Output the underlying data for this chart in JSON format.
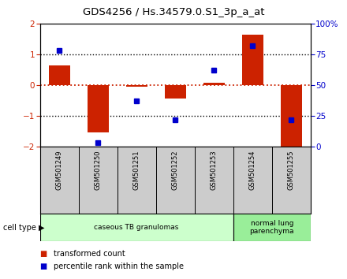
{
  "title": "GDS4256 / Hs.34579.0.S1_3p_a_at",
  "samples": [
    "GSM501249",
    "GSM501250",
    "GSM501251",
    "GSM501252",
    "GSM501253",
    "GSM501254",
    "GSM501255"
  ],
  "transformed_count": [
    0.65,
    -1.55,
    -0.05,
    -0.45,
    0.07,
    1.65,
    -2.1
  ],
  "percentile_rank": [
    78,
    3,
    37,
    22,
    62,
    82,
    22
  ],
  "ylim_left": [
    -2,
    2
  ],
  "ylim_right": [
    0,
    100
  ],
  "yticks_left": [
    -2,
    -1,
    0,
    1,
    2
  ],
  "yticks_right": [
    0,
    25,
    50,
    75,
    100
  ],
  "ytick_labels_right": [
    "0",
    "25",
    "50",
    "75",
    "100%"
  ],
  "bar_color": "#cc2200",
  "square_color": "#0000cc",
  "cell_type_groups": [
    {
      "label": "caseous TB granulomas",
      "start": 0,
      "end": 4,
      "color": "#ccffcc"
    },
    {
      "label": "normal lung\nparenchyma",
      "start": 5,
      "end": 6,
      "color": "#99ee99"
    }
  ],
  "cell_type_label": "cell type",
  "legend_red_label": "transformed count",
  "legend_blue_label": "percentile rank within the sample",
  "sample_box_color": "#cccccc",
  "bg_color": "#ffffff",
  "fig_width": 4.4,
  "fig_height": 3.54,
  "fig_dpi": 100
}
